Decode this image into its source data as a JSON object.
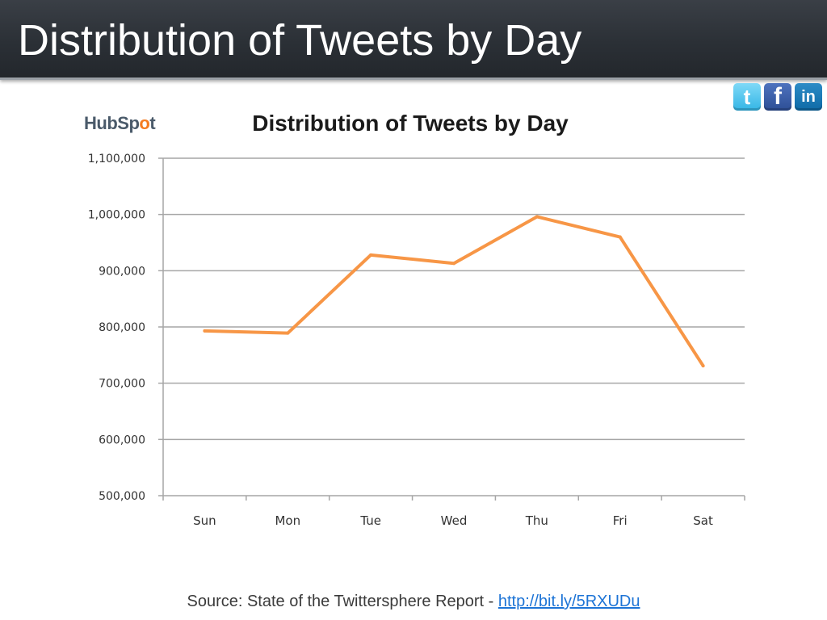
{
  "slide": {
    "title": "Distribution of Tweets by Day"
  },
  "social": {
    "twitter": "t",
    "facebook": "f",
    "linkedin": "in",
    "icons": [
      "twitter-icon",
      "facebook-icon",
      "linkedin-icon"
    ]
  },
  "logo": {
    "text_before": "HubSp",
    "text_sprocket": "o",
    "text_after": "t"
  },
  "chart_data": {
    "type": "line",
    "title": "Distribution of Tweets by Day",
    "categories": [
      "Sun",
      "Mon",
      "Tue",
      "Wed",
      "Thu",
      "Fri",
      "Sat"
    ],
    "series": [
      {
        "values": [
          793000,
          789000,
          928000,
          913000,
          996000,
          960000,
          731000
        ],
        "color": "#f79646"
      }
    ],
    "ylim": [
      500000,
      1100000
    ],
    "yticks": [
      500000,
      600000,
      700000,
      800000,
      900000,
      1000000,
      1100000
    ],
    "ytick_labels": [
      "500,000",
      "600,000",
      "700,000",
      "800,000",
      "900,000",
      "1,000,000",
      "1,100,000"
    ],
    "grid": true,
    "legend": "none"
  },
  "footer": {
    "source_text": "Source: State of the Twittersphere Report - ",
    "link_text": "http://bit.ly/5RXUDu"
  },
  "colors": {
    "header_bg": "#2b3036",
    "line": "#f79646",
    "grid": "#a6a6a6",
    "link": "#1d74d6"
  }
}
